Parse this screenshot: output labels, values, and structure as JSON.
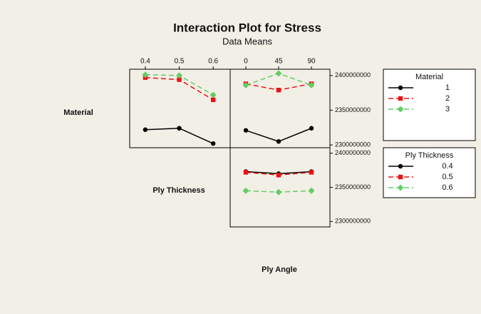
{
  "title": "Interaction Plot for Stress",
  "subtitle": "Data Means",
  "labels": [
    "Material",
    "Ply Thickness",
    "Ply Angle"
  ],
  "chart_data": [
    {
      "type": "line",
      "x": [
        0.4,
        0.5,
        0.6
      ],
      "xlim": [
        0.354,
        0.65
      ],
      "xticks": [
        0.4,
        0.5,
        0.6
      ],
      "ylim": [
        2296000000,
        2409000000
      ],
      "series": [
        {
          "color": "#000000",
          "marker": "circle",
          "dash": "solid",
          "values": [
            2322000000,
            2324000000,
            2302000000
          ]
        },
        {
          "color": "#ee1111",
          "marker": "square",
          "dash": "dashed",
          "values": [
            2397000000,
            2394000000,
            2365000000
          ]
        },
        {
          "color": "#66cc66",
          "marker": "diamond",
          "dash": "dashed",
          "values": [
            2401000000,
            2400000000,
            2372000000
          ]
        }
      ]
    },
    {
      "type": "line",
      "x": [
        0,
        45,
        90
      ],
      "xlim": [
        -21.5,
        115.4
      ],
      "xticks": [
        0,
        45,
        90
      ],
      "ylim": [
        2296000000,
        2409000000
      ],
      "yticks": [
        2300000000,
        2350000000,
        2400000000
      ],
      "legend_title": "Material",
      "series": [
        {
          "name": "1",
          "color": "#000000",
          "marker": "circle",
          "dash": "solid",
          "values": [
            2321000000,
            2305000000,
            2324000000
          ]
        },
        {
          "name": "2",
          "color": "#ee1111",
          "marker": "square",
          "dash": "dashed",
          "values": [
            2388000000,
            2379000000,
            2388000000
          ]
        },
        {
          "name": "3",
          "color": "#66cc66",
          "marker": "diamond",
          "dash": "dashed",
          "values": [
            2386000000,
            2403000000,
            2386000000
          ]
        }
      ]
    },
    {
      "type": "line",
      "x": [
        0,
        45,
        90
      ],
      "xlim": [
        -21.5,
        115.4
      ],
      "ylim": [
        2292000000,
        2408000000
      ],
      "yticks": [
        2300000000,
        2350000000,
        2400000000
      ],
      "legend_title": "Ply Thickness",
      "series": [
        {
          "name": "0.4",
          "color": "#000000",
          "marker": "circle",
          "dash": "solid",
          "values": [
            2373000000,
            2370000000,
            2373000000
          ]
        },
        {
          "name": "0.5",
          "color": "#ee1111",
          "marker": "square",
          "dash": "dashed",
          "values": [
            2372000000,
            2368000000,
            2372000000
          ]
        },
        {
          "name": "0.6",
          "color": "#66cc66",
          "marker": "diamond",
          "dash": "dashed",
          "values": [
            2345000000,
            2343000000,
            2345000000
          ]
        }
      ]
    }
  ]
}
